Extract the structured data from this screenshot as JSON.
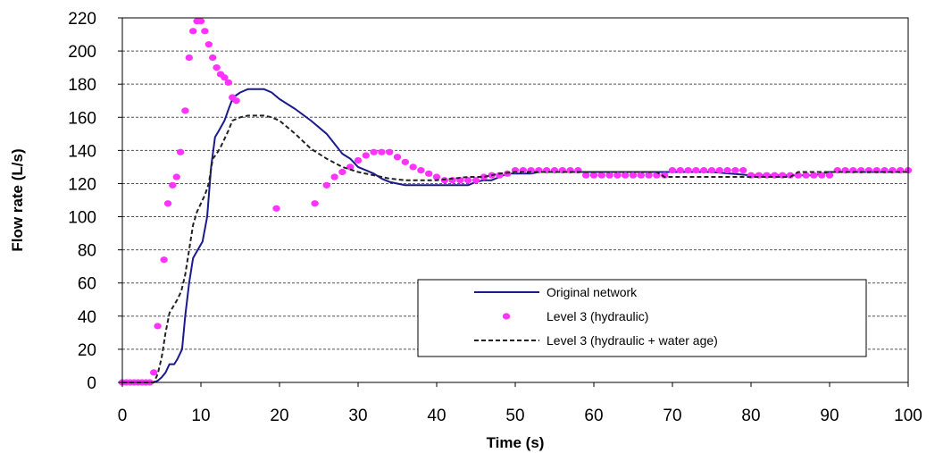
{
  "chart_data": {
    "type": "line",
    "xlabel": "Time (s)",
    "ylabel": "Flow rate (L/s)",
    "xlim": [
      0,
      100
    ],
    "ylim": [
      0,
      220
    ],
    "x_ticks": [
      0,
      10,
      20,
      30,
      40,
      50,
      60,
      70,
      80,
      90,
      100
    ],
    "y_ticks": [
      0,
      20,
      40,
      60,
      80,
      100,
      120,
      140,
      160,
      180,
      200,
      220
    ],
    "grid": {
      "horizontal": "dashed",
      "vertical": false
    },
    "legend_position": "bottom-right",
    "series": [
      {
        "name": "Original network",
        "style": "solid-line",
        "color": "#1a1a8c",
        "points": [
          [
            0,
            0
          ],
          [
            4,
            0
          ],
          [
            4.5,
            1
          ],
          [
            5,
            3
          ],
          [
            5.5,
            6
          ],
          [
            6,
            11
          ],
          [
            6.6,
            11
          ],
          [
            7,
            14
          ],
          [
            7.6,
            20
          ],
          [
            8,
            40
          ],
          [
            8.5,
            60
          ],
          [
            9,
            75
          ],
          [
            9.6,
            80
          ],
          [
            10.2,
            85
          ],
          [
            10.8,
            100
          ],
          [
            11.3,
            130
          ],
          [
            11.8,
            148
          ],
          [
            12.3,
            152
          ],
          [
            13,
            158
          ],
          [
            13.6,
            166
          ],
          [
            14.1,
            172
          ],
          [
            15,
            175
          ],
          [
            16,
            177
          ],
          [
            17,
            177
          ],
          [
            18,
            177
          ],
          [
            19,
            175
          ],
          [
            20,
            171
          ],
          [
            22,
            165
          ],
          [
            24,
            158
          ],
          [
            26,
            150
          ],
          [
            27,
            144
          ],
          [
            28,
            138
          ],
          [
            29,
            135
          ],
          [
            30,
            130
          ],
          [
            31,
            128
          ],
          [
            32,
            126
          ],
          [
            33,
            123
          ],
          [
            34,
            121
          ],
          [
            35,
            120
          ],
          [
            36,
            119
          ],
          [
            38,
            119
          ],
          [
            40,
            119
          ],
          [
            42,
            119
          ],
          [
            44,
            119
          ],
          [
            45,
            121
          ],
          [
            46,
            122
          ],
          [
            47,
            122
          ],
          [
            48,
            124
          ],
          [
            49,
            126
          ],
          [
            50,
            126
          ],
          [
            52,
            126
          ],
          [
            53,
            127
          ],
          [
            60,
            127
          ],
          [
            70,
            127
          ],
          [
            75,
            127
          ],
          [
            80,
            125
          ],
          [
            85,
            125
          ],
          [
            88,
            125
          ],
          [
            89,
            126
          ],
          [
            90,
            127
          ],
          [
            95,
            127
          ],
          [
            100,
            127
          ]
        ]
      },
      {
        "name": "Level 3 (hydraulic)",
        "style": "markers",
        "color": "#ff33ff",
        "points": [
          [
            0,
            0
          ],
          [
            0.5,
            0
          ],
          [
            1,
            0
          ],
          [
            1.5,
            0
          ],
          [
            2,
            0
          ],
          [
            2.5,
            0
          ],
          [
            3,
            0
          ],
          [
            3.5,
            0
          ],
          [
            4,
            6
          ],
          [
            4.5,
            34
          ],
          [
            5.3,
            74
          ],
          [
            5.8,
            108
          ],
          [
            6.4,
            119
          ],
          [
            6.9,
            124
          ],
          [
            7.4,
            139
          ],
          [
            8,
            164
          ],
          [
            8.5,
            196
          ],
          [
            9,
            212
          ],
          [
            9.5,
            218
          ],
          [
            10,
            218
          ],
          [
            10.5,
            212
          ],
          [
            11,
            204
          ],
          [
            11.5,
            196
          ],
          [
            12,
            190
          ],
          [
            12.5,
            186
          ],
          [
            13,
            184
          ],
          [
            13.5,
            181
          ],
          [
            14,
            172
          ],
          [
            14.5,
            170
          ],
          [
            19.6,
            105
          ],
          [
            24.5,
            108
          ],
          [
            26,
            119
          ],
          [
            27,
            124
          ],
          [
            28,
            127
          ],
          [
            29,
            130
          ],
          [
            30,
            134
          ],
          [
            31,
            137
          ],
          [
            32,
            139
          ],
          [
            33,
            139
          ],
          [
            34,
            139
          ],
          [
            35,
            136
          ],
          [
            36,
            133
          ],
          [
            37,
            130
          ],
          [
            38,
            128
          ],
          [
            39,
            126
          ],
          [
            40,
            124
          ],
          [
            41,
            122
          ],
          [
            42,
            122
          ],
          [
            43,
            122
          ],
          [
            44,
            122
          ],
          [
            45,
            122
          ],
          [
            46,
            124
          ],
          [
            47,
            125
          ],
          [
            48,
            125
          ],
          [
            49,
            126
          ],
          [
            50,
            128
          ],
          [
            51,
            128
          ],
          [
            52,
            128
          ],
          [
            53,
            128
          ],
          [
            54,
            128
          ],
          [
            55,
            128
          ],
          [
            56,
            128
          ],
          [
            57,
            128
          ],
          [
            58,
            128
          ],
          [
            59,
            125
          ],
          [
            60,
            125
          ],
          [
            61,
            125
          ],
          [
            62,
            125
          ],
          [
            63,
            125
          ],
          [
            64,
            125
          ],
          [
            65,
            125
          ],
          [
            66,
            125
          ],
          [
            67,
            125
          ],
          [
            68,
            125
          ],
          [
            69,
            125
          ],
          [
            70,
            128
          ],
          [
            71,
            128
          ],
          [
            72,
            128
          ],
          [
            73,
            128
          ],
          [
            74,
            128
          ],
          [
            75,
            128
          ],
          [
            76,
            128
          ],
          [
            77,
            128
          ],
          [
            78,
            128
          ],
          [
            79,
            128
          ],
          [
            80,
            125
          ],
          [
            81,
            125
          ],
          [
            82,
            125
          ],
          [
            83,
            125
          ],
          [
            84,
            125
          ],
          [
            85,
            125
          ],
          [
            86,
            125
          ],
          [
            87,
            125
          ],
          [
            88,
            125
          ],
          [
            89,
            125
          ],
          [
            90,
            125
          ],
          [
            91,
            128
          ],
          [
            92,
            128
          ],
          [
            93,
            128
          ],
          [
            94,
            128
          ],
          [
            95,
            128
          ],
          [
            96,
            128
          ],
          [
            97,
            128
          ],
          [
            98,
            128
          ],
          [
            99,
            128
          ],
          [
            100,
            128
          ]
        ]
      },
      {
        "name": "Level 3 (hydraulic + water age)",
        "style": "dashed-line",
        "color": "#222222",
        "points": [
          [
            0,
            0
          ],
          [
            4,
            0
          ],
          [
            4.5,
            5
          ],
          [
            5,
            15
          ],
          [
            5.5,
            30
          ],
          [
            6,
            42
          ],
          [
            7,
            50
          ],
          [
            7.5,
            55
          ],
          [
            8,
            65
          ],
          [
            8.5,
            80
          ],
          [
            9,
            95
          ],
          [
            9.5,
            103
          ],
          [
            10,
            108
          ],
          [
            10.5,
            113
          ],
          [
            11,
            120
          ],
          [
            11.5,
            135
          ],
          [
            12,
            138
          ],
          [
            12.5,
            142
          ],
          [
            13,
            147
          ],
          [
            13.5,
            152
          ],
          [
            14,
            158
          ],
          [
            15,
            160
          ],
          [
            16,
            161
          ],
          [
            17,
            161
          ],
          [
            18,
            161
          ],
          [
            19,
            160
          ],
          [
            20,
            158
          ],
          [
            22,
            150
          ],
          [
            24,
            141
          ],
          [
            26,
            135
          ],
          [
            28,
            130
          ],
          [
            30,
            127
          ],
          [
            32,
            125
          ],
          [
            34,
            123
          ],
          [
            36,
            122
          ],
          [
            40,
            122
          ],
          [
            42,
            123
          ],
          [
            44,
            124
          ],
          [
            46,
            124
          ],
          [
            48,
            126
          ],
          [
            50,
            127
          ],
          [
            55,
            127
          ],
          [
            60,
            127
          ],
          [
            65,
            127
          ],
          [
            68,
            127
          ],
          [
            69,
            124
          ],
          [
            70,
            124
          ],
          [
            80,
            124
          ],
          [
            85,
            124
          ],
          [
            86,
            127
          ],
          [
            90,
            127
          ],
          [
            95,
            127
          ],
          [
            100,
            127
          ]
        ]
      }
    ]
  }
}
